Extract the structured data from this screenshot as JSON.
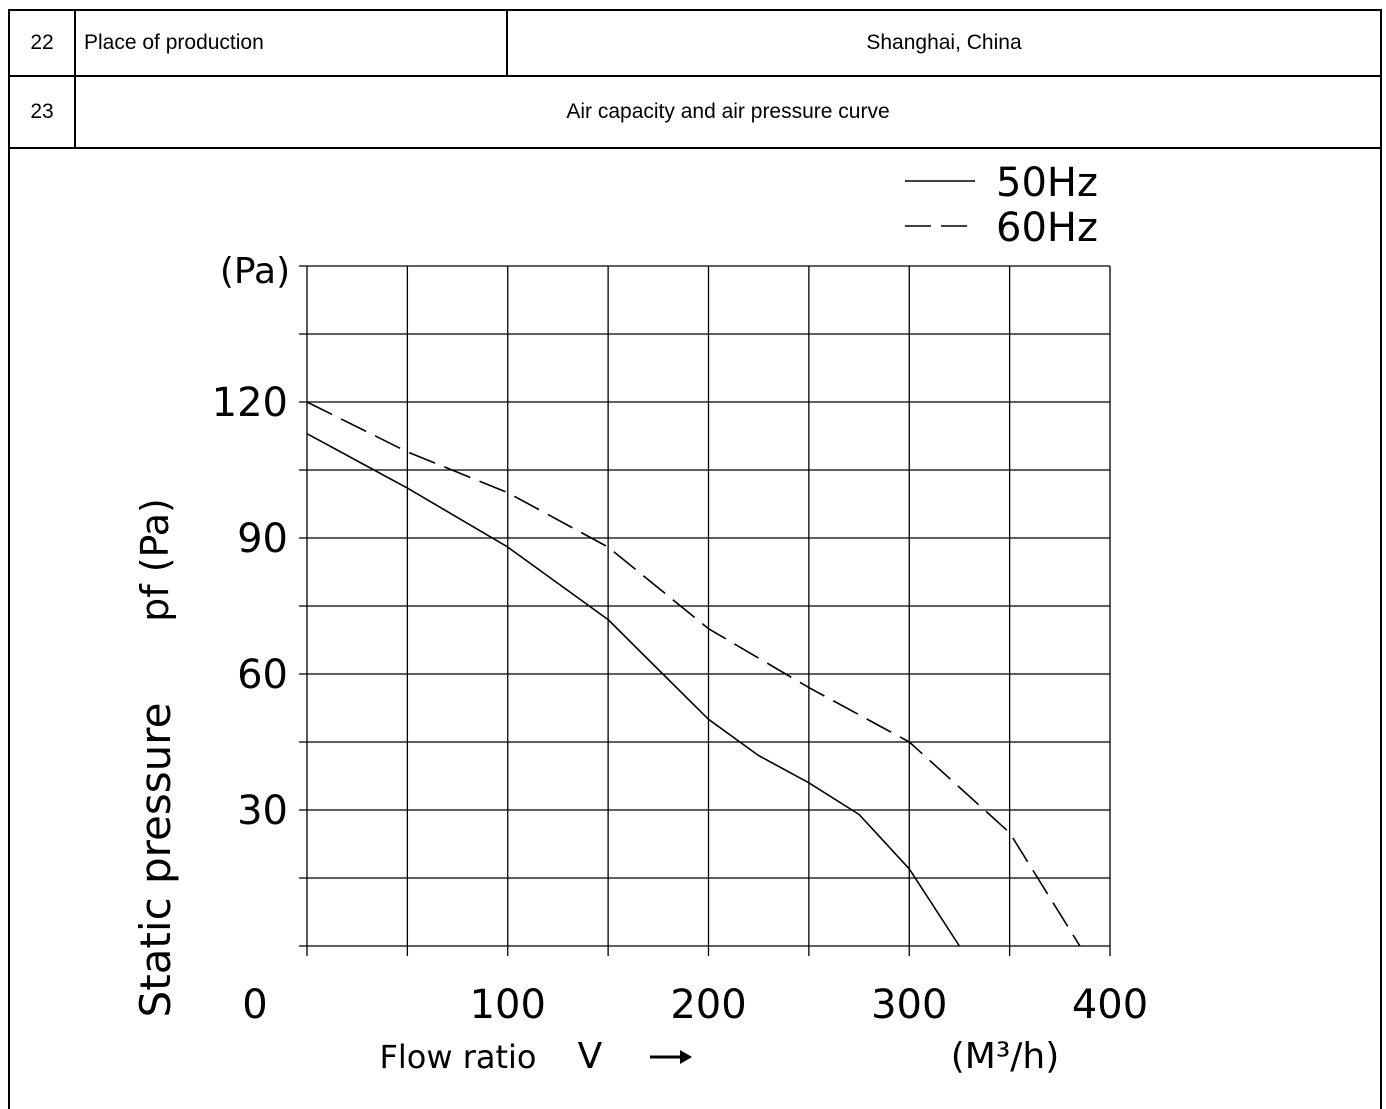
{
  "table": {
    "rows": [
      {
        "num": "22",
        "label": "Place of production",
        "value": "Shanghai, China"
      },
      {
        "num": "23",
        "label": "Air capacity and air pressure curve"
      }
    ]
  },
  "chart_data": {
    "type": "line",
    "ylabel": "Static pressure",
    "ylabel_symbol": "pf (Pa)",
    "y_unit_top": "(Pa)",
    "xlabel": "Flow ratio",
    "xlabel_symbol": "V",
    "x_unit": "(M³/h)",
    "xlim": [
      0,
      400
    ],
    "ylim": [
      0,
      150
    ],
    "x_ticks": [
      0,
      100,
      200,
      300,
      400
    ],
    "y_ticks": [
      30,
      60,
      90,
      120
    ],
    "grid": true,
    "legend_position": "top-right",
    "series": [
      {
        "name": "50Hz",
        "style": "solid",
        "x": [
          0,
          50,
          100,
          150,
          175,
          200,
          225,
          250,
          275,
          300,
          325
        ],
        "y": [
          113,
          101,
          88,
          72,
          61,
          50,
          42,
          36,
          29,
          17,
          0
        ]
      },
      {
        "name": "60Hz",
        "style": "dashed",
        "x": [
          0,
          50,
          100,
          150,
          200,
          250,
          300,
          350,
          385
        ],
        "y": [
          120,
          109,
          100,
          88,
          70,
          57,
          45,
          25,
          0
        ]
      }
    ]
  }
}
